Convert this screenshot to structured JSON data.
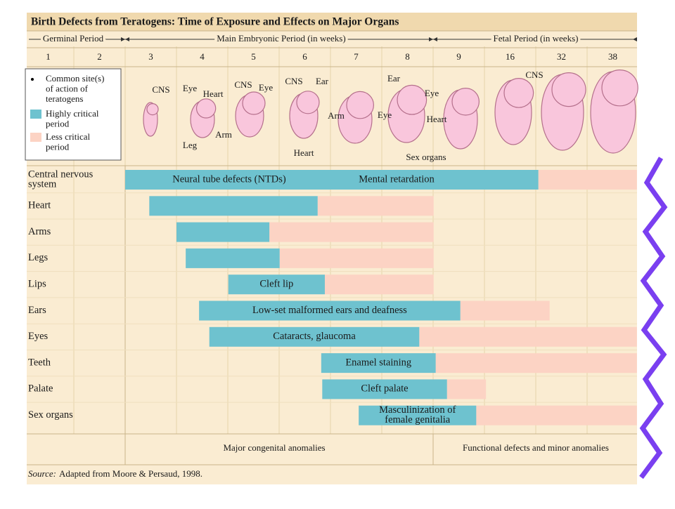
{
  "header": {
    "title": "Birth Defects from Teratogens: Time of Exposure and Effects on Major Organs"
  },
  "periods": [
    "Germinal Period",
    "Main Embryonic Period (in weeks)",
    "Fetal Period (in weeks)"
  ],
  "weeks": [
    "1",
    "2",
    "3",
    "4",
    "5",
    "6",
    "7",
    "8",
    "9",
    "16",
    "32",
    "38"
  ],
  "legend": [
    {
      "lines": [
        "Common site(s)",
        "of action of",
        "teratogens"
      ]
    },
    {
      "lines": [
        "Highly critical",
        "period"
      ]
    },
    {
      "lines": [
        "Less critical",
        "period"
      ]
    }
  ],
  "embryo_labels": [
    "CNS",
    "Eye",
    "Heart",
    "CNS",
    "Eye",
    "Arm",
    "Leg",
    "CNS",
    "Ear",
    "Arm",
    "Heart",
    "Ear",
    "Eye",
    "Eye",
    "Heart",
    "Sex organs",
    "CNS"
  ],
  "rows": [
    {
      "organ": [
        "Central nervous",
        "system"
      ],
      "labels": [
        "Neural tube defects (NTDs)",
        "Mental retardation"
      ],
      "critical": [
        2.0,
        10.05
      ],
      "less": [
        10.05,
        11.97
      ]
    },
    {
      "organ": [
        "Heart"
      ],
      "labels": [],
      "critical": [
        2.47,
        5.75
      ],
      "less": [
        5.75,
        8.01
      ]
    },
    {
      "organ": [
        "Arms"
      ],
      "labels": [],
      "critical": [
        3.0,
        4.81
      ],
      "less": [
        4.81,
        8.01
      ]
    },
    {
      "organ": [
        "Legs"
      ],
      "labels": [],
      "critical": [
        3.18,
        5.01
      ],
      "less": [
        5.01,
        8.01
      ]
    },
    {
      "organ": [
        "Lips"
      ],
      "labels": [
        "Cleft lip"
      ],
      "critical": [
        4.01,
        5.89
      ],
      "less": [
        5.89,
        8.01
      ]
    },
    {
      "organ": [
        "Ears"
      ],
      "labels": [
        "Low-set malformed ears and deafness"
      ],
      "critical": [
        3.44,
        8.53
      ],
      "less": [
        8.53,
        10.27
      ]
    },
    {
      "organ": [
        "Eyes"
      ],
      "labels": [
        "Cataracts, glaucoma"
      ],
      "critical": [
        3.64,
        7.73
      ],
      "less": [
        7.73,
        11.97
      ]
    },
    {
      "organ": [
        "Teeth"
      ],
      "labels": [
        "Enamel staining"
      ],
      "critical": [
        5.82,
        8.05
      ],
      "less": [
        8.05,
        11.97
      ]
    },
    {
      "organ": [
        "Palate"
      ],
      "labels": [
        "Cleft palate"
      ],
      "critical": [
        5.84,
        8.27
      ],
      "less": [
        8.27,
        9.03
      ]
    },
    {
      "organ": [
        "Sex organs"
      ],
      "labels": [
        "Masculinization of",
        "female genitalia"
      ],
      "critical": [
        6.55,
        8.84
      ],
      "less": [
        8.84,
        11.97
      ]
    }
  ],
  "footer": {
    "major": "Major congenital anomalies",
    "functional": "Functional defects and minor anomalies",
    "source_prefix": "Source:",
    "source": "Adapted from Moore & Persaud, 1998."
  }
}
